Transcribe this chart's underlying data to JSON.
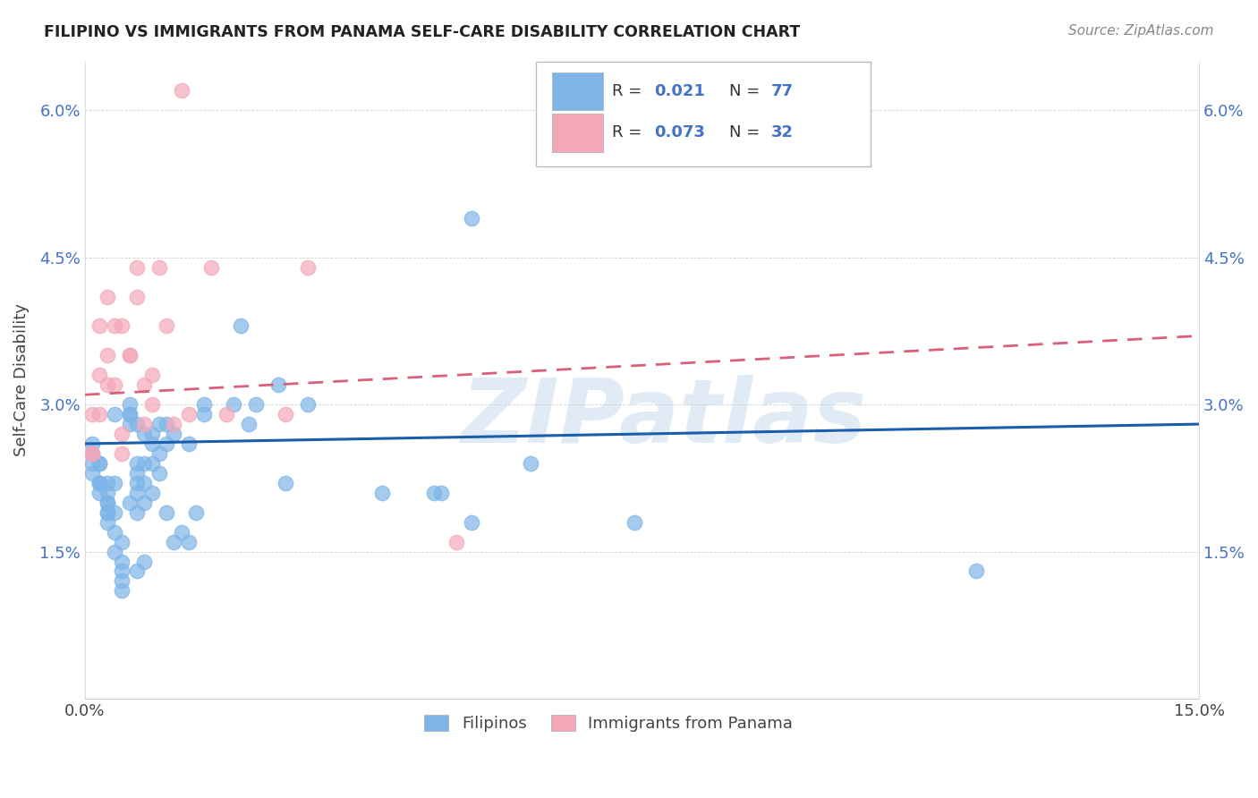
{
  "title": "FILIPINO VS IMMIGRANTS FROM PANAMA SELF-CARE DISABILITY CORRELATION CHART",
  "source": "Source: ZipAtlas.com",
  "ylabel": "Self-Care Disability",
  "xlim": [
    0.0,
    0.15
  ],
  "ylim": [
    0.0,
    0.065
  ],
  "xtick_positions": [
    0.0,
    0.05,
    0.1,
    0.15
  ],
  "xtick_labels": [
    "0.0%",
    "",
    "",
    "15.0%"
  ],
  "ytick_positions": [
    0.0,
    0.015,
    0.03,
    0.045,
    0.06
  ],
  "ytick_labels": [
    "",
    "1.5%",
    "3.0%",
    "4.5%",
    "6.0%"
  ],
  "legend_R1": "0.021",
  "legend_N1": "77",
  "legend_R2": "0.073",
  "legend_N2": "32",
  "color_filipino": "#7EB5E8",
  "color_panama": "#F4A7B9",
  "line_color_filipino": "#1B5EAB",
  "line_color_panama": "#D9607A",
  "watermark": "ZIPatlas",
  "filipino_trendline": [
    [
      0.0,
      0.026
    ],
    [
      0.15,
      0.028
    ]
  ],
  "panama_trendline": [
    [
      0.0,
      0.031
    ],
    [
      0.15,
      0.037
    ]
  ],
  "filipino_x": [
    0.001,
    0.001,
    0.001,
    0.001,
    0.002,
    0.002,
    0.002,
    0.002,
    0.002,
    0.002,
    0.003,
    0.003,
    0.003,
    0.003,
    0.003,
    0.003,
    0.003,
    0.004,
    0.004,
    0.004,
    0.004,
    0.004,
    0.005,
    0.005,
    0.005,
    0.005,
    0.005,
    0.006,
    0.006,
    0.006,
    0.006,
    0.006,
    0.007,
    0.007,
    0.007,
    0.007,
    0.007,
    0.007,
    0.007,
    0.008,
    0.008,
    0.008,
    0.008,
    0.008,
    0.009,
    0.009,
    0.009,
    0.009,
    0.01,
    0.01,
    0.01,
    0.011,
    0.011,
    0.011,
    0.012,
    0.012,
    0.013,
    0.014,
    0.014,
    0.015,
    0.016,
    0.016,
    0.02,
    0.021,
    0.022,
    0.023,
    0.026,
    0.027,
    0.03,
    0.04,
    0.047,
    0.048,
    0.052,
    0.052,
    0.06,
    0.074,
    0.12
  ],
  "filipino_y": [
    0.026,
    0.024,
    0.025,
    0.023,
    0.024,
    0.022,
    0.024,
    0.022,
    0.021,
    0.022,
    0.019,
    0.019,
    0.02,
    0.022,
    0.021,
    0.02,
    0.018,
    0.017,
    0.015,
    0.022,
    0.019,
    0.029,
    0.016,
    0.014,
    0.013,
    0.011,
    0.012,
    0.029,
    0.029,
    0.03,
    0.028,
    0.02,
    0.024,
    0.028,
    0.023,
    0.022,
    0.021,
    0.019,
    0.013,
    0.027,
    0.024,
    0.022,
    0.02,
    0.014,
    0.026,
    0.024,
    0.021,
    0.027,
    0.025,
    0.023,
    0.028,
    0.026,
    0.019,
    0.028,
    0.027,
    0.016,
    0.017,
    0.026,
    0.016,
    0.019,
    0.03,
    0.029,
    0.03,
    0.038,
    0.028,
    0.03,
    0.032,
    0.022,
    0.03,
    0.021,
    0.021,
    0.021,
    0.018,
    0.049,
    0.024,
    0.018,
    0.013
  ],
  "panama_x": [
    0.001,
    0.001,
    0.001,
    0.002,
    0.002,
    0.002,
    0.003,
    0.003,
    0.003,
    0.004,
    0.004,
    0.005,
    0.005,
    0.005,
    0.006,
    0.006,
    0.007,
    0.007,
    0.008,
    0.008,
    0.009,
    0.009,
    0.01,
    0.011,
    0.012,
    0.013,
    0.014,
    0.017,
    0.019,
    0.027,
    0.03,
    0.05
  ],
  "panama_y": [
    0.029,
    0.025,
    0.025,
    0.038,
    0.033,
    0.029,
    0.032,
    0.041,
    0.035,
    0.038,
    0.032,
    0.038,
    0.027,
    0.025,
    0.035,
    0.035,
    0.041,
    0.044,
    0.028,
    0.032,
    0.03,
    0.033,
    0.044,
    0.038,
    0.028,
    0.062,
    0.029,
    0.044,
    0.029,
    0.029,
    0.044,
    0.016
  ]
}
